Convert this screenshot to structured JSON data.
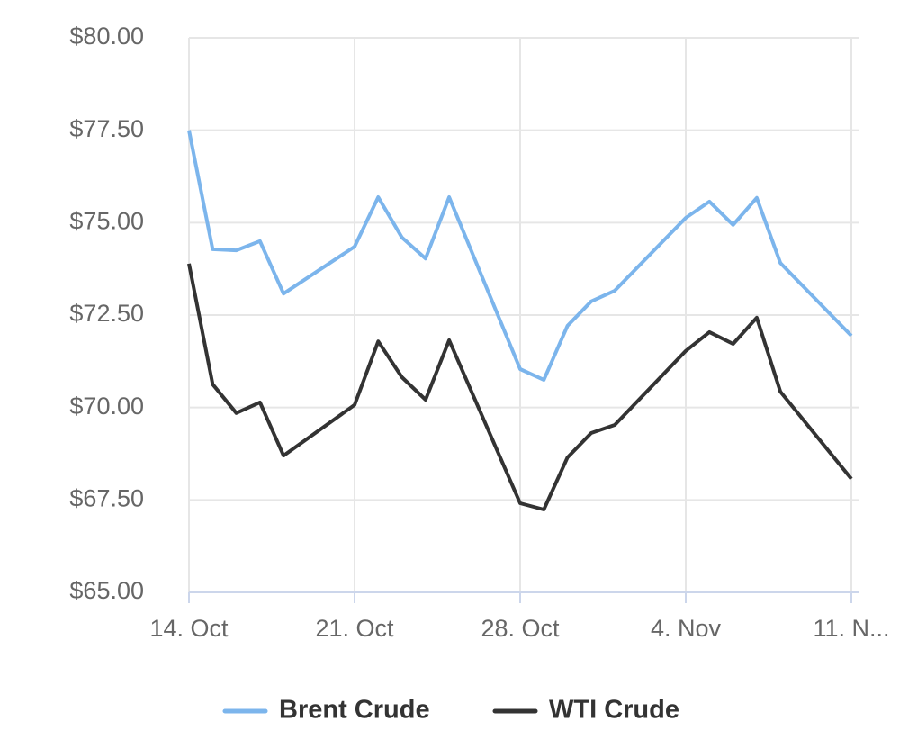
{
  "chart_data": {
    "type": "line",
    "x": [
      "14. Oct",
      "15. Oct",
      "16. Oct",
      "17. Oct",
      "18. Oct",
      "21. Oct",
      "22. Oct",
      "23. Oct",
      "24. Oct",
      "25. Oct",
      "28. Oct",
      "29. Oct",
      "30. Oct",
      "31. Oct",
      "1. Nov",
      "4. Nov",
      "5. Nov",
      "6. Nov",
      "7. Nov",
      "8. Nov",
      "11. Nov"
    ],
    "series": [
      {
        "name": "Brent Crude",
        "color": "#7cb5ec",
        "values": [
          77.5,
          74.28,
          74.25,
          74.5,
          73.08,
          74.35,
          75.69,
          74.6,
          74.03,
          75.69,
          71.04,
          70.75,
          72.21,
          72.87,
          73.16,
          75.13,
          75.57,
          74.94,
          75.67,
          73.91,
          71.94
        ]
      },
      {
        "name": "WTI Crude",
        "color": "#333333",
        "values": [
          73.89,
          70.63,
          69.85,
          70.14,
          68.7,
          70.07,
          71.79,
          70.82,
          70.21,
          71.82,
          67.41,
          67.24,
          68.65,
          69.31,
          69.53,
          71.53,
          72.04,
          71.72,
          72.43,
          70.43,
          68.07
        ]
      }
    ],
    "xlim": [
      "14. Oct",
      "11. Nov"
    ],
    "xticks": [
      "14. Oct",
      "21. Oct",
      "28. Oct",
      "4. Nov",
      {
        "value": "11. Nov",
        "label": "11. N..."
      }
    ],
    "ylim": [
      65,
      80
    ],
    "yticks": [
      {
        "value": 65,
        "label": "$65.00"
      },
      {
        "value": 67.5,
        "label": "$67.50"
      },
      {
        "value": 70,
        "label": "$70.00"
      },
      {
        "value": 72.5,
        "label": "$72.50"
      },
      {
        "value": 75,
        "label": "$75.00"
      },
      {
        "value": 77.5,
        "label": "$77.50"
      },
      {
        "value": 80,
        "label": "$80.00"
      }
    ],
    "grid": true,
    "legend": "bottom"
  }
}
